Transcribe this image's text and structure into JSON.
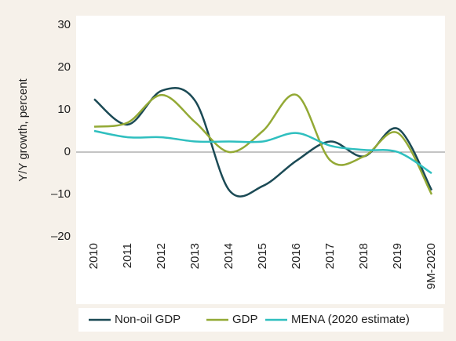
{
  "chart_data": {
    "type": "line",
    "y_label": "Y/Y growth, percent",
    "categories": [
      "2010",
      "2011",
      "2012",
      "2013",
      "2014",
      "2015",
      "2016",
      "2017",
      "2018",
      "2019",
      "9M-2020"
    ],
    "series": [
      {
        "name": "Non-oil GDP",
        "color": "#1b4a55",
        "values": [
          12.5,
          6.5,
          14.5,
          12,
          -9,
          -8,
          -2,
          2.5,
          -1,
          5.5,
          -9
        ]
      },
      {
        "name": "GDP",
        "color": "#93a935",
        "values": [
          6,
          7,
          13.5,
          7,
          0,
          5,
          13.5,
          -2,
          -1,
          4.5,
          -10
        ]
      },
      {
        "name": "MENA (2020 estimate)",
        "color": "#2fbfbf",
        "values": [
          5,
          3.5,
          3.5,
          2.5,
          2.5,
          2.5,
          4.5,
          1.5,
          0.5,
          0,
          -5
        ]
      }
    ],
    "ylim": [
      -20,
      30
    ],
    "yticks": [
      {
        "value": -20,
        "label": "–20"
      },
      {
        "value": -10,
        "label": "–10"
      },
      0,
      10,
      20,
      30
    ]
  }
}
